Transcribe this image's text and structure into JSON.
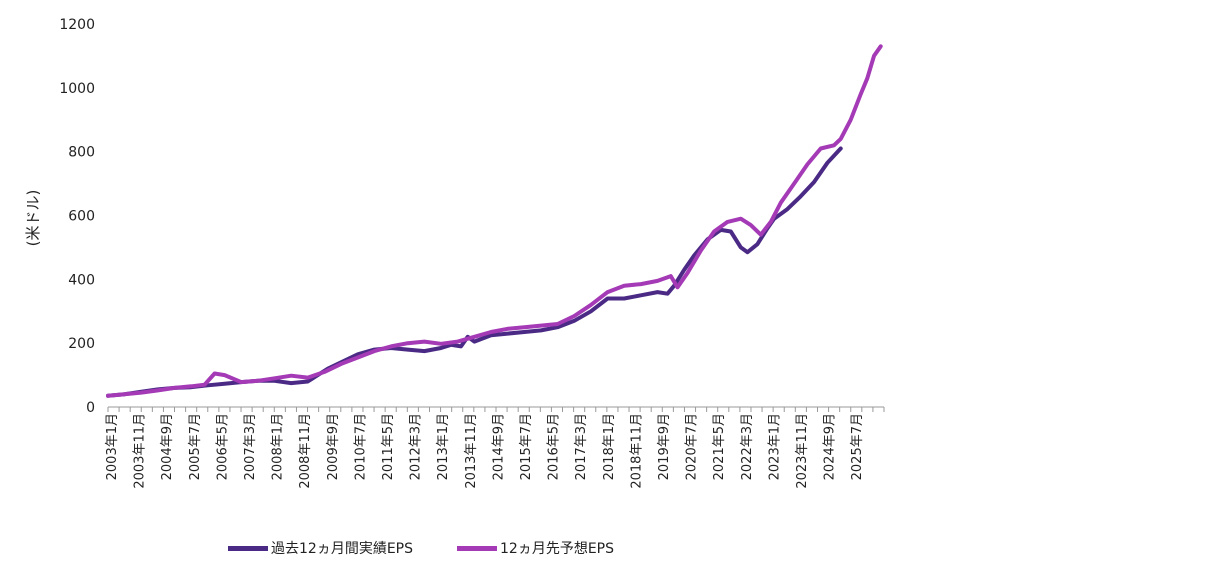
{
  "chart_data": {
    "type": "line",
    "title": "",
    "xlabel": "",
    "ylabel": "(米ドル)",
    "ylim": [
      0,
      1200
    ],
    "yticks": [
      0,
      200,
      400,
      600,
      800,
      1000,
      1200
    ],
    "x_tick_labels": [
      "2003年1月",
      "2003年11月",
      "2004年9月",
      "2005年7月",
      "2006年5月",
      "2007年3月",
      "2008年1月",
      "2008年11月",
      "2009年9月",
      "2010年7月",
      "2011年5月",
      "2012年3月",
      "2013年1月",
      "2013年11月",
      "2014年9月",
      "2015年7月",
      "2016年5月",
      "2017年3月",
      "2018年1月",
      "2018年11月",
      "2019年9月",
      "2020年7月",
      "2021年5月",
      "2022年3月",
      "2023年1月",
      "2023年11月",
      "2024年9月",
      "2025年7月"
    ],
    "x_start": 2003.0,
    "x_end": 2026.3,
    "series": [
      {
        "name": "過去12ヵ月間実績EPS",
        "color": "#4b2a86",
        "x": [
          2003.0,
          2003.5,
          2004.0,
          2004.5,
          2005.0,
          2005.5,
          2006.0,
          2006.5,
          2007.0,
          2007.5,
          2008.0,
          2008.5,
          2009.0,
          2009.3,
          2009.6,
          2010.0,
          2010.5,
          2011.0,
          2011.5,
          2012.0,
          2012.5,
          2013.0,
          2013.3,
          2013.6,
          2013.8,
          2014.0,
          2014.5,
          2015.0,
          2015.5,
          2016.0,
          2016.5,
          2017.0,
          2017.5,
          2018.0,
          2018.5,
          2019.0,
          2019.5,
          2019.8,
          2020.0,
          2020.3,
          2020.6,
          2021.0,
          2021.4,
          2021.7,
          2022.0,
          2022.2,
          2022.5,
          2022.8,
          2023.0,
          2023.4,
          2023.8,
          2024.2,
          2024.6,
          2025.0
        ],
        "values": [
          35,
          40,
          48,
          55,
          60,
          62,
          68,
          73,
          78,
          82,
          82,
          75,
          80,
          100,
          120,
          140,
          165,
          180,
          185,
          180,
          175,
          185,
          195,
          190,
          220,
          205,
          225,
          230,
          235,
          240,
          250,
          270,
          300,
          340,
          340,
          350,
          360,
          355,
          380,
          430,
          475,
          525,
          555,
          550,
          500,
          485,
          510,
          560,
          590,
          620,
          660,
          705,
          765,
          810
        ]
      },
      {
        "name": "12ヵ月先予想EPS",
        "color": "#a43ab5",
        "x": [
          2003.0,
          2003.5,
          2004.0,
          2004.5,
          2005.0,
          2005.5,
          2005.9,
          2006.2,
          2006.5,
          2007.0,
          2007.5,
          2008.0,
          2008.5,
          2009.0,
          2009.5,
          2010.0,
          2010.5,
          2011.0,
          2011.5,
          2012.0,
          2012.5,
          2013.0,
          2013.5,
          2014.0,
          2014.5,
          2015.0,
          2015.5,
          2016.0,
          2016.5,
          2017.0,
          2017.5,
          2018.0,
          2018.5,
          2019.0,
          2019.5,
          2019.9,
          2020.1,
          2020.4,
          2020.8,
          2021.2,
          2021.6,
          2022.0,
          2022.3,
          2022.6,
          2022.9,
          2023.2,
          2023.6,
          2024.0,
          2024.4,
          2024.8,
          2025.0,
          2025.3,
          2025.6,
          2025.8,
          2026.0,
          2026.2
        ],
        "values": [
          35,
          40,
          45,
          52,
          60,
          65,
          70,
          105,
          100,
          78,
          82,
          90,
          98,
          92,
          110,
          135,
          155,
          175,
          190,
          200,
          205,
          198,
          205,
          220,
          235,
          245,
          250,
          255,
          260,
          285,
          320,
          360,
          380,
          385,
          395,
          410,
          375,
          420,
          490,
          550,
          580,
          590,
          570,
          540,
          580,
          640,
          700,
          760,
          810,
          820,
          840,
          900,
          980,
          1030,
          1100,
          1130
        ]
      }
    ]
  }
}
